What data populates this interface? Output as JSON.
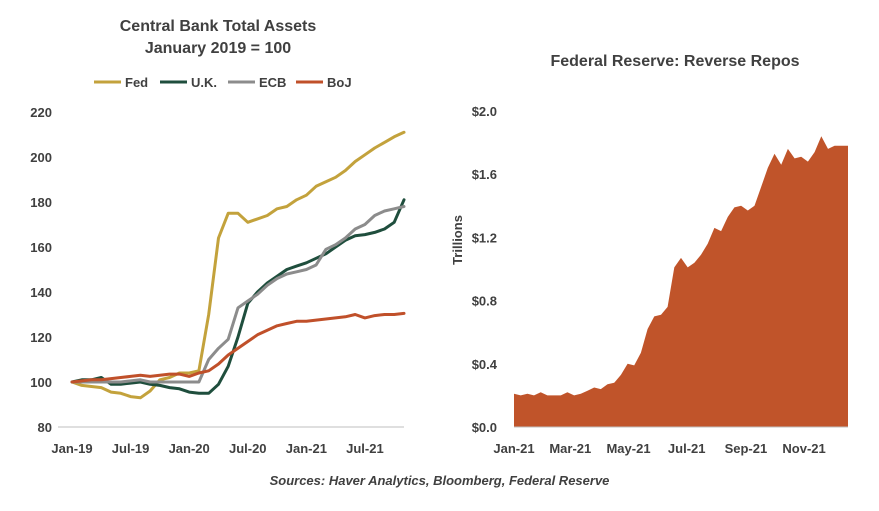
{
  "source": "Sources: Haver Analytics, Bloomberg, Federal Reserve",
  "colors": {
    "fed": "#c3a23c",
    "uk": "#1f4e3d",
    "ecb": "#8c8c8c",
    "boj": "#c0502a",
    "rrp": "#c0542a",
    "axis": "#bfbfbf",
    "text": "#404040"
  },
  "chart_data": [
    {
      "type": "line",
      "title": "Central Bank Total Assets",
      "subtitle": "January 2019 = 100",
      "xlabel": "",
      "ylabel": "",
      "ylim": [
        80,
        220
      ],
      "yticks": [
        80,
        100,
        120,
        140,
        160,
        180,
        200,
        220
      ],
      "xlim": [
        "2019-01",
        "2021-11"
      ],
      "x_tick_labels": [
        "Jan-19",
        "Jul-19",
        "Jan-20",
        "Jul-20",
        "Jan-21",
        "Jul-21"
      ],
      "x_tick_dates": [
        "2019-01",
        "2019-07",
        "2020-01",
        "2020-07",
        "2021-01",
        "2021-07"
      ],
      "grid": false,
      "legend": "top",
      "x": [
        "2019-01",
        "2019-02",
        "2019-03",
        "2019-04",
        "2019-05",
        "2019-06",
        "2019-07",
        "2019-08",
        "2019-09",
        "2019-10",
        "2019-11",
        "2019-12",
        "2020-01",
        "2020-02",
        "2020-03",
        "2020-04",
        "2020-05",
        "2020-06",
        "2020-07",
        "2020-08",
        "2020-09",
        "2020-10",
        "2020-11",
        "2020-12",
        "2021-01",
        "2021-02",
        "2021-03",
        "2021-04",
        "2021-05",
        "2021-06",
        "2021-07",
        "2021-08",
        "2021-09",
        "2021-10",
        "2021-11"
      ],
      "series": [
        {
          "name": "Fed",
          "values": [
            100,
            98.5,
            98,
            97.5,
            95.5,
            95,
            93.5,
            93,
            96,
            101,
            102,
            104,
            104,
            105,
            130,
            164,
            175,
            175,
            171,
            172.5,
            174,
            177,
            178,
            181,
            183,
            187,
            189,
            191,
            194,
            198,
            201,
            204,
            206.5,
            209,
            211
          ]
        },
        {
          "name": "U.K.",
          "values": [
            100,
            101,
            101,
            102,
            99,
            99,
            99.5,
            100,
            99,
            98.5,
            97.5,
            97,
            95.5,
            95,
            95,
            99,
            107,
            120,
            135,
            140,
            144,
            147,
            150,
            151.5,
            153,
            155,
            157,
            160,
            163,
            165,
            165.5,
            166.5,
            168,
            171,
            181
          ]
        },
        {
          "name": "ECB",
          "values": [
            100,
            100,
            100,
            100,
            100,
            100,
            100.5,
            101,
            100,
            100,
            100,
            100,
            100,
            100,
            110,
            115,
            119,
            133,
            136,
            139,
            143,
            146,
            148,
            149,
            150,
            152,
            159,
            161,
            164,
            168,
            170,
            174,
            176,
            177,
            178
          ]
        },
        {
          "name": "BoJ",
          "values": [
            100,
            100.5,
            101,
            101,
            101.5,
            102,
            102.5,
            103,
            102.5,
            103,
            103.5,
            103.5,
            102.5,
            104,
            105,
            108,
            112,
            115,
            118,
            121,
            123,
            125,
            126,
            127,
            127,
            127.5,
            128,
            128.5,
            129,
            130,
            128.5,
            129.5,
            130,
            130,
            130.5
          ]
        }
      ]
    },
    {
      "type": "area",
      "title": "Federal Reserve: Reverse Repos",
      "xlabel": "",
      "ylabel": "Trillions",
      "ylim": [
        0,
        2.0
      ],
      "yticks": [
        0.0,
        0.4,
        0.8,
        1.2,
        1.6,
        2.0
      ],
      "ytick_labels": [
        "$0.0",
        "$0.4",
        "$0.8",
        "$1.2",
        "$1.6",
        "$2.0"
      ],
      "xlim": [
        "2021-01-01",
        "2021-12-17"
      ],
      "x_tick_labels": [
        "Jan-21",
        "Mar-21",
        "May-21",
        "Jul-21",
        "Sep-21",
        "Nov-21"
      ],
      "x_tick_dates": [
        "2021-01-01",
        "2021-03-01",
        "2021-05-01",
        "2021-07-01",
        "2021-09-01",
        "2021-11-01"
      ],
      "grid": false,
      "legend": "none",
      "x": [
        "2021-01-01",
        "2021-01-08",
        "2021-01-15",
        "2021-01-22",
        "2021-01-29",
        "2021-02-05",
        "2021-02-12",
        "2021-02-19",
        "2021-02-26",
        "2021-03-05",
        "2021-03-12",
        "2021-03-19",
        "2021-03-26",
        "2021-04-02",
        "2021-04-09",
        "2021-04-16",
        "2021-04-23",
        "2021-04-30",
        "2021-05-07",
        "2021-05-14",
        "2021-05-21",
        "2021-05-28",
        "2021-06-04",
        "2021-06-11",
        "2021-06-18",
        "2021-06-25",
        "2021-07-02",
        "2021-07-09",
        "2021-07-16",
        "2021-07-23",
        "2021-07-30",
        "2021-08-06",
        "2021-08-13",
        "2021-08-20",
        "2021-08-27",
        "2021-09-03",
        "2021-09-10",
        "2021-09-17",
        "2021-09-24",
        "2021-10-01",
        "2021-10-08",
        "2021-10-15",
        "2021-10-22",
        "2021-10-29",
        "2021-11-05",
        "2021-11-12",
        "2021-11-19",
        "2021-11-26",
        "2021-12-03",
        "2021-12-10",
        "2021-12-17"
      ],
      "values": [
        0.21,
        0.2,
        0.21,
        0.2,
        0.22,
        0.2,
        0.2,
        0.2,
        0.22,
        0.2,
        0.21,
        0.23,
        0.25,
        0.24,
        0.27,
        0.28,
        0.33,
        0.4,
        0.39,
        0.47,
        0.62,
        0.7,
        0.71,
        0.76,
        1.01,
        1.07,
        1.01,
        1.04,
        1.09,
        1.16,
        1.26,
        1.24,
        1.33,
        1.39,
        1.4,
        1.37,
        1.4,
        1.52,
        1.64,
        1.73,
        1.66,
        1.76,
        1.7,
        1.71,
        1.68,
        1.74,
        1.84,
        1.76,
        1.78,
        1.78,
        1.78
      ]
    }
  ]
}
